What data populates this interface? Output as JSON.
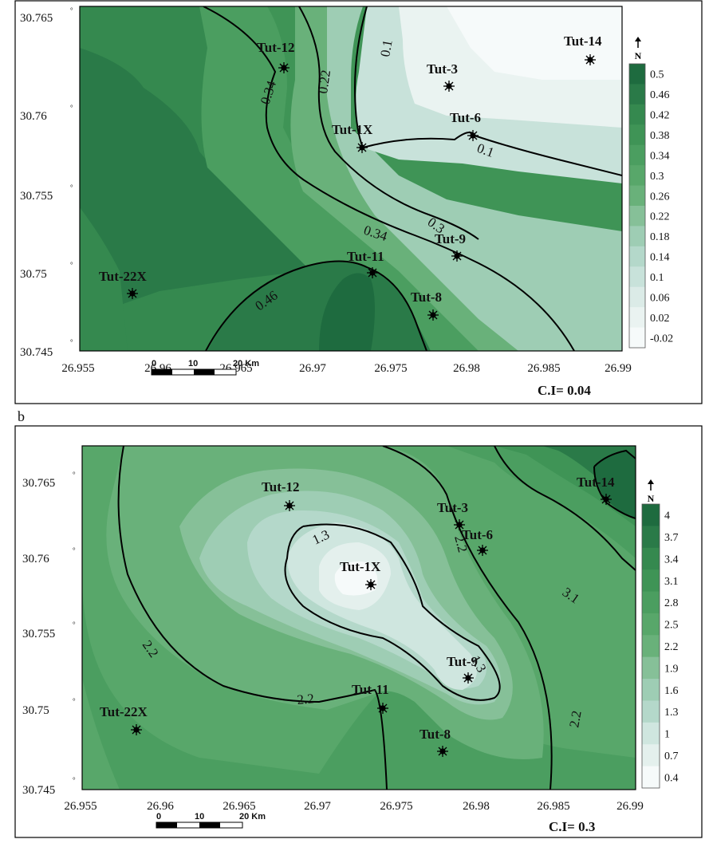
{
  "panel_b_label": "b",
  "north_label": "N",
  "panels": [
    {
      "id": "a",
      "ci_label": "C.I= 0.04",
      "x_ticks": [
        "26.955",
        "26.96",
        "26.965",
        "26.97",
        "26.975",
        "26.98",
        "26.985",
        "26.99"
      ],
      "y_ticks": [
        "30.765",
        "30.76",
        "30.755",
        "30.75",
        "30.745"
      ],
      "legend_values": [
        "0.5",
        "0.46",
        "0.42",
        "0.38",
        "0.34",
        "0.3",
        "0.26",
        "0.22",
        "0.18",
        "0.14",
        "0.1",
        "0.06",
        "0.02",
        "-0.02"
      ],
      "legend_colors": [
        "#1e6b3f",
        "#2a7a48",
        "#35894f",
        "#3f9456",
        "#4b9e60",
        "#58a76a",
        "#69b17a",
        "#86c098",
        "#9ecdb4",
        "#b4d8ca",
        "#c8e2da",
        "#dbebe7",
        "#eaf3f1",
        "#f6fafa"
      ],
      "contour_labels": [
        "0.1",
        "0.22",
        "0.34",
        "0.1",
        "0.34",
        "0.3",
        "0.46"
      ],
      "wells": [
        "Tut-12",
        "Tut-3",
        "Tut-14",
        "Tut-1X",
        "Tut-6",
        "Tut-9",
        "Tut-11",
        "Tut-22X",
        "Tut-8"
      ],
      "scale_bar": {
        "labels": [
          "0",
          "10",
          "20 Km"
        ]
      }
    },
    {
      "id": "b",
      "ci_label": "C.I= 0.3",
      "x_ticks": [
        "26.955",
        "26.96",
        "26.965",
        "26.97",
        "26.975",
        "26.98",
        "26.985",
        "26.99"
      ],
      "y_ticks": [
        "30.765",
        "30.76",
        "30.755",
        "30.75",
        "30.745"
      ],
      "legend_values": [
        "4",
        "3.7",
        "3.4",
        "3.1",
        "2.8",
        "2.5",
        "2.2",
        "1.9",
        "1.6",
        "1.3",
        "1",
        "0.7",
        "0.4"
      ],
      "legend_colors": [
        "#1e6b3f",
        "#2a7a48",
        "#35894f",
        "#3f9456",
        "#4b9e60",
        "#58a76a",
        "#69b17a",
        "#86c098",
        "#9ecdb4",
        "#b4d8ca",
        "#cfe6df",
        "#e4f0ed",
        "#f6fafa"
      ],
      "contour_labels": [
        "1.3",
        "2.2",
        "2.2",
        "3.1",
        "1.3",
        "2.2",
        "2.2"
      ],
      "wells": [
        "Tut-14",
        "Tut-12",
        "Tut-3",
        "Tut-6",
        "Tut-1X",
        "Tut-9",
        "Tut-11",
        "Tut-22X",
        "Tut-8"
      ],
      "scale_bar": {
        "labels": [
          "0",
          "10",
          "20 Km"
        ]
      }
    }
  ]
}
